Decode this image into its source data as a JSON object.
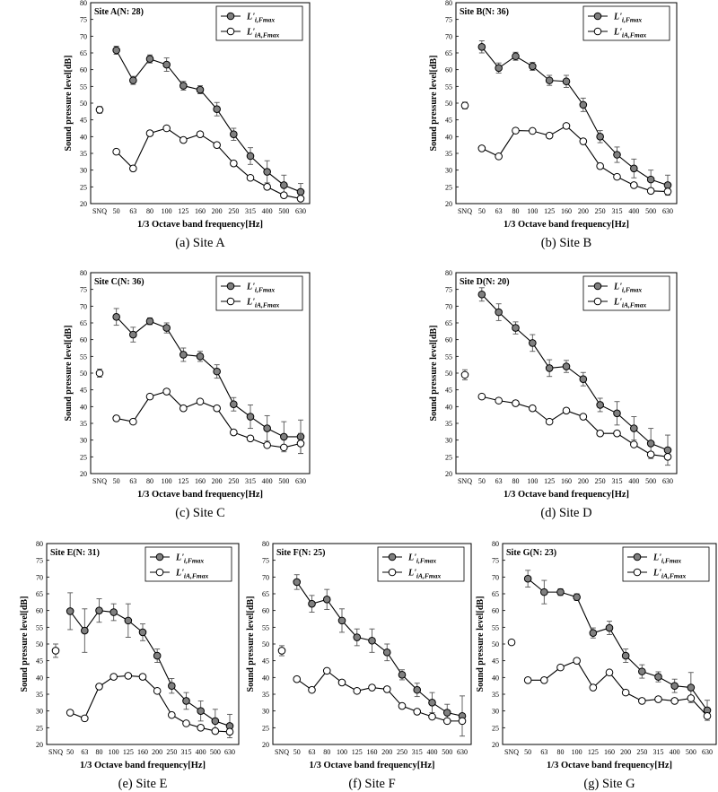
{
  "figure": {
    "captions": [
      "(a)  Site  A",
      "(b)  Site  B",
      "(c)  Site  C",
      "(d)  Site  D",
      "(e)  Site  E",
      "(f)  Site  F",
      "(g)  Site  G"
    ]
  },
  "chart_data": [
    {
      "type": "line",
      "title": "Site A(N: 28)",
      "xlabel": "1/3 Octave band frequency[Hz]",
      "ylabel": "Sound pressure level[dB]",
      "ylim": [
        20,
        80
      ],
      "yticks": [
        "20",
        "25",
        "30",
        "35",
        "40",
        "45",
        "50",
        "55",
        "60",
        "65",
        "70",
        "75",
        "80"
      ],
      "categories": [
        "SNQ",
        "50",
        "63",
        "80",
        "100",
        "125",
        "160",
        "200",
        "250",
        "315",
        "400",
        "500",
        "630"
      ],
      "legend_position": "top-right",
      "series": [
        {
          "name": "L'i,Fmax",
          "fill": "#808080",
          "values": [
            null,
            65.8,
            56.8,
            63.2,
            61.5,
            55.2,
            54.0,
            48.2,
            40.7,
            34.2,
            29.5,
            25.5,
            23.5
          ],
          "errors": [
            null,
            1.2,
            1.2,
            1.2,
            2.0,
            1.3,
            1.2,
            2.0,
            1.8,
            2.5,
            3.3,
            3.0,
            2.5
          ]
        },
        {
          "name": "L'iA,Fmax",
          "fill": "#ffffff",
          "values": [
            48.0,
            35.5,
            30.5,
            41.0,
            42.5,
            39.0,
            40.7,
            37.5,
            32.0,
            27.7,
            25.0,
            22.5,
            21.5
          ],
          "errors": [
            1.0,
            null,
            null,
            null,
            null,
            null,
            null,
            null,
            null,
            null,
            null,
            null,
            null
          ]
        }
      ]
    },
    {
      "type": "line",
      "title": "Site B(N: 36)",
      "xlabel": "1/3 Octave band frequency[Hz]",
      "ylabel": "Sound pressure level[dB]",
      "ylim": [
        20,
        80
      ],
      "yticks": [
        "20",
        "25",
        "30",
        "35",
        "40",
        "45",
        "50",
        "55",
        "60",
        "65",
        "70",
        "75",
        "80"
      ],
      "categories": [
        "SNQ",
        "50",
        "63",
        "80",
        "100",
        "125",
        "160",
        "200",
        "250",
        "315",
        "400",
        "500",
        "630"
      ],
      "legend_position": "top-right",
      "series": [
        {
          "name": "L'i,Fmax",
          "fill": "#808080",
          "values": [
            null,
            66.8,
            60.5,
            64.0,
            61.0,
            56.8,
            56.5,
            49.5,
            40.0,
            34.6,
            30.5,
            27.2,
            25.5
          ],
          "errors": [
            null,
            1.8,
            1.5,
            1.2,
            1.2,
            1.5,
            1.8,
            2.0,
            1.8,
            2.3,
            2.8,
            2.8,
            3.0
          ]
        },
        {
          "name": "L'iA,Fmax",
          "fill": "#ffffff",
          "values": [
            49.3,
            36.5,
            34.1,
            41.8,
            41.7,
            40.3,
            43.2,
            38.6,
            31.2,
            28.0,
            25.5,
            23.8,
            23.6
          ],
          "errors": [
            1.0,
            null,
            null,
            null,
            null,
            null,
            null,
            null,
            null,
            null,
            null,
            null,
            null
          ]
        }
      ]
    },
    {
      "type": "line",
      "title": "Site C(N: 36)",
      "xlabel": "1/3 Octave band frequency[Hz]",
      "ylabel": "Sound pressure level[dB]",
      "ylim": [
        20,
        80
      ],
      "yticks": [
        "20",
        "25",
        "30",
        "35",
        "40",
        "45",
        "50",
        "55",
        "60",
        "65",
        "70",
        "75",
        "80"
      ],
      "categories": [
        "SNQ",
        "50",
        "63",
        "80",
        "100",
        "125",
        "160",
        "200",
        "250",
        "315",
        "400",
        "500",
        "630"
      ],
      "legend_position": "top-right",
      "series": [
        {
          "name": "L'i,Fmax",
          "fill": "#808080",
          "values": [
            null,
            66.8,
            61.5,
            65.5,
            63.5,
            55.5,
            55.0,
            50.5,
            40.7,
            37.0,
            33.5,
            31.0,
            31.0
          ],
          "errors": [
            null,
            2.5,
            2.2,
            1.0,
            1.5,
            2.0,
            1.5,
            2.0,
            2.0,
            3.5,
            3.8,
            4.5,
            5.0
          ]
        },
        {
          "name": "L'iA,Fmax",
          "fill": "#ffffff",
          "values": [
            50.0,
            36.5,
            35.5,
            43.0,
            44.5,
            39.5,
            41.5,
            39.5,
            32.3,
            30.5,
            28.5,
            27.8,
            29.0
          ],
          "errors": [
            1.2,
            null,
            null,
            null,
            null,
            null,
            null,
            null,
            null,
            null,
            null,
            null,
            3.0
          ]
        }
      ]
    },
    {
      "type": "line",
      "title": "Site D(N: 20)",
      "xlabel": "1/3 Octave band frequency[Hz]",
      "ylabel": "Sound pressure level[dB]",
      "ylim": [
        20,
        80
      ],
      "yticks": [
        "20",
        "25",
        "30",
        "35",
        "40",
        "45",
        "50",
        "55",
        "60",
        "65",
        "70",
        "75",
        "80"
      ],
      "categories": [
        "SNQ",
        "50",
        "63",
        "80",
        "100",
        "125",
        "160",
        "200",
        "250",
        "315",
        "400",
        "500",
        "630"
      ],
      "legend_position": "top-right",
      "series": [
        {
          "name": "L'i,Fmax",
          "fill": "#808080",
          "values": [
            null,
            73.5,
            68.2,
            63.5,
            59.0,
            51.5,
            52.0,
            48.2,
            40.5,
            38.0,
            33.5,
            29.0,
            27.0
          ],
          "errors": [
            null,
            2.0,
            2.5,
            1.8,
            2.5,
            2.5,
            1.8,
            2.0,
            2.0,
            3.5,
            3.5,
            4.5,
            4.5
          ]
        },
        {
          "name": "L'iA,Fmax",
          "fill": "#ffffff",
          "values": [
            49.5,
            43.0,
            41.8,
            41.0,
            39.5,
            35.5,
            38.8,
            37.0,
            32.0,
            32.0,
            28.7,
            25.7,
            25.0
          ],
          "errors": [
            1.5,
            null,
            null,
            null,
            null,
            null,
            null,
            null,
            null,
            null,
            null,
            null,
            null
          ]
        }
      ]
    },
    {
      "type": "line",
      "title": "Site E(N: 31)",
      "xlabel": "1/3 Octave band frequency[Hz]",
      "ylabel": "Sound pressure level[dB]",
      "ylim": [
        20,
        80
      ],
      "yticks": [
        "20",
        "25",
        "30",
        "35",
        "40",
        "45",
        "50",
        "55",
        "60",
        "65",
        "70",
        "75",
        "80"
      ],
      "categories": [
        "SNQ",
        "50",
        "63",
        "80",
        "100",
        "125",
        "160",
        "200",
        "250",
        "315",
        "400",
        "500",
        "630"
      ],
      "legend_position": "top-right",
      "series": [
        {
          "name": "L'i,Fmax",
          "fill": "#808080",
          "values": [
            null,
            59.8,
            54.0,
            60.0,
            59.5,
            57.0,
            53.5,
            46.5,
            37.5,
            33.0,
            30.0,
            27.0,
            25.5
          ],
          "errors": [
            null,
            5.5,
            6.5,
            3.5,
            2.5,
            5.0,
            2.5,
            2.0,
            2.2,
            2.5,
            3.0,
            3.5,
            3.5
          ]
        },
        {
          "name": "L'iA,Fmax",
          "fill": "#ffffff",
          "values": [
            48.0,
            29.5,
            27.8,
            37.3,
            40.2,
            40.5,
            40.2,
            36.0,
            28.8,
            26.3,
            25.0,
            24.0,
            23.8
          ],
          "errors": [
            2.0,
            null,
            null,
            null,
            null,
            null,
            null,
            null,
            null,
            null,
            null,
            null,
            null
          ]
        }
      ]
    },
    {
      "type": "line",
      "title": "Site F(N: 25)",
      "xlabel": "1/3 Octave band frequency[Hz]",
      "ylabel": "Sound pressure level[dB]",
      "ylim": [
        20,
        80
      ],
      "yticks": [
        "20",
        "25",
        "30",
        "35",
        "40",
        "45",
        "50",
        "55",
        "60",
        "65",
        "70",
        "75",
        "80"
      ],
      "categories": [
        "SNQ",
        "50",
        "63",
        "80",
        "100",
        "125",
        "160",
        "200",
        "250",
        "315",
        "400",
        "500",
        "630"
      ],
      "legend_position": "top-right",
      "series": [
        {
          "name": "L'i,Fmax",
          "fill": "#808080",
          "values": [
            null,
            68.5,
            62.0,
            63.3,
            57.0,
            52.0,
            51.0,
            47.5,
            40.8,
            36.3,
            32.5,
            29.5,
            28.5
          ],
          "errors": [
            null,
            2.2,
            2.5,
            3.0,
            3.5,
            2.5,
            3.5,
            2.5,
            1.5,
            2.0,
            3.0,
            2.5,
            6.0
          ]
        },
        {
          "name": "L'iA,Fmax",
          "fill": "#ffffff",
          "values": [
            48.0,
            39.5,
            36.3,
            42.0,
            38.5,
            36.0,
            37.0,
            36.5,
            31.5,
            29.8,
            28.3,
            27.0,
            27.0
          ],
          "errors": [
            1.5,
            null,
            null,
            null,
            null,
            null,
            null,
            null,
            null,
            null,
            null,
            null,
            null
          ]
        }
      ]
    },
    {
      "type": "line",
      "title": "Site G(N: 23)",
      "xlabel": "1/3 Octave band frequency[Hz]",
      "ylabel": "Sound pressure level[dB]",
      "ylim": [
        20,
        80
      ],
      "yticks": [
        "20",
        "25",
        "30",
        "35",
        "40",
        "45",
        "50",
        "55",
        "60",
        "65",
        "70",
        "75",
        "80"
      ],
      "categories": [
        "SNQ",
        "50",
        "63",
        "80",
        "100",
        "125",
        "160",
        "200",
        "250",
        "315",
        "400",
        "500",
        "630"
      ],
      "legend_position": "top-right",
      "series": [
        {
          "name": "L'i,Fmax",
          "fill": "#808080",
          "values": [
            null,
            69.5,
            65.5,
            65.5,
            64.0,
            53.3,
            54.8,
            46.5,
            41.8,
            40.2,
            37.5,
            37.0,
            30.2
          ],
          "errors": [
            null,
            2.5,
            3.5,
            1.0,
            1.0,
            1.5,
            2.0,
            2.0,
            2.0,
            1.5,
            2.0,
            4.5,
            3.0
          ]
        },
        {
          "name": "L'iA,Fmax",
          "fill": "#ffffff",
          "values": [
            50.5,
            39.2,
            39.2,
            43.0,
            45.0,
            37.0,
            41.5,
            35.5,
            33.0,
            33.5,
            33.0,
            33.8,
            28.5
          ],
          "errors": [
            null,
            null,
            null,
            null,
            null,
            null,
            null,
            null,
            null,
            null,
            null,
            null,
            null
          ]
        }
      ]
    }
  ]
}
